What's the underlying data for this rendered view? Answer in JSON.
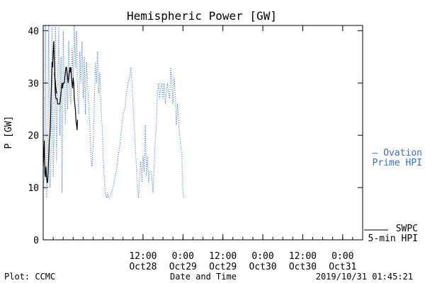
{
  "chart_data": {
    "type": "line",
    "title": "Hemispheric Power [GW]",
    "ylabel": "P [GW]",
    "xlabel": "Date and Time",
    "ylim": [
      0,
      41
    ],
    "xlim": [
      "2019-10-27 06:00",
      "2019-10-31 06:00"
    ],
    "yticks": [
      0,
      10,
      20,
      30,
      40
    ],
    "xticks": [
      {
        "time": "2019-10-28 12:00",
        "label1": "12:00",
        "label2": "Oct28"
      },
      {
        "time": "2019-10-29 00:00",
        "label1": "0:00",
        "label2": "Oct29"
      },
      {
        "time": "2019-10-29 12:00",
        "label1": "12:00",
        "label2": "Oct29"
      },
      {
        "time": "2019-10-30 00:00",
        "label1": "0:00",
        "label2": "Oct30"
      },
      {
        "time": "2019-10-30 12:00",
        "label1": "12:00",
        "label2": "Oct30"
      },
      {
        "time": "2019-10-31 00:00",
        "label1": "0:00",
        "label2": "Oct31"
      }
    ],
    "grid": false,
    "legend_position": "right",
    "series": [
      {
        "name": "Ovation Prime HPI",
        "legend_lines": [
          "— Ovation",
          "Prime HPI"
        ],
        "style": "dotted",
        "color": "#3a6fc4",
        "points": [
          [
            "2019-10-27 06:00",
            9
          ],
          [
            "2019-10-27 06:20",
            12
          ],
          [
            "2019-10-27 06:40",
            41
          ],
          [
            "2019-10-27 07:00",
            8
          ],
          [
            "2019-10-27 07:20",
            14
          ],
          [
            "2019-10-27 07:40",
            41
          ],
          [
            "2019-10-27 08:00",
            10
          ],
          [
            "2019-10-27 08:20",
            16
          ],
          [
            "2019-10-27 08:40",
            41
          ],
          [
            "2019-10-27 09:00",
            12
          ],
          [
            "2019-10-27 09:20",
            22
          ],
          [
            "2019-10-27 09:40",
            41
          ],
          [
            "2019-10-27 10:00",
            15
          ],
          [
            "2019-10-27 10:20",
            30
          ],
          [
            "2019-10-27 10:40",
            41
          ],
          [
            "2019-10-27 11:00",
            20
          ],
          [
            "2019-10-27 11:20",
            35
          ],
          [
            "2019-10-27 11:40",
            9
          ],
          [
            "2019-10-27 12:00",
            40
          ],
          [
            "2019-10-27 12:20",
            30
          ],
          [
            "2019-10-27 12:40",
            22
          ],
          [
            "2019-10-27 13:00",
            33
          ],
          [
            "2019-10-27 13:20",
            25
          ],
          [
            "2019-10-27 13:40",
            38
          ],
          [
            "2019-10-27 14:00",
            28
          ],
          [
            "2019-10-27 14:20",
            26
          ],
          [
            "2019-10-27 14:40",
            37
          ],
          [
            "2019-10-27 15:00",
            30
          ],
          [
            "2019-10-27 15:20",
            41
          ],
          [
            "2019-10-27 15:40",
            33
          ],
          [
            "2019-10-27 16:00",
            40
          ],
          [
            "2019-10-27 16:20",
            28
          ],
          [
            "2019-10-27 16:40",
            24
          ],
          [
            "2019-10-27 17:00",
            36
          ],
          [
            "2019-10-27 17:20",
            30
          ],
          [
            "2019-10-27 17:40",
            38
          ],
          [
            "2019-10-27 18:00",
            27
          ],
          [
            "2019-10-27 18:20",
            35
          ],
          [
            "2019-10-27 18:40",
            24
          ],
          [
            "2019-10-27 19:00",
            34
          ],
          [
            "2019-10-27 19:20",
            30
          ],
          [
            "2019-10-27 19:40",
            26
          ],
          [
            "2019-10-27 20:00",
            22
          ],
          [
            "2019-10-27 20:20",
            16
          ],
          [
            "2019-10-27 20:40",
            14
          ],
          [
            "2019-10-27 21:00",
            18
          ],
          [
            "2019-10-27 21:20",
            25
          ],
          [
            "2019-10-27 21:40",
            34
          ],
          [
            "2019-10-27 22:00",
            30
          ],
          [
            "2019-10-27 22:20",
            36
          ],
          [
            "2019-10-27 22:40",
            28
          ],
          [
            "2019-10-27 23:00",
            32
          ],
          [
            "2019-10-27 23:20",
            26
          ],
          [
            "2019-10-27 23:40",
            22
          ],
          [
            "2019-10-28 00:00",
            16
          ],
          [
            "2019-10-28 00:20",
            12
          ],
          [
            "2019-10-28 00:40",
            9
          ],
          [
            "2019-10-28 01:00",
            8
          ],
          [
            "2019-10-28 01:20",
            9
          ],
          [
            "2019-10-28 01:40",
            8
          ],
          [
            "2019-10-28 02:00",
            8
          ],
          [
            "2019-10-28 02:30",
            9
          ],
          [
            "2019-10-28 03:00",
            10
          ],
          [
            "2019-10-28 03:30",
            12
          ],
          [
            "2019-10-28 04:00",
            13
          ],
          [
            "2019-10-28 04:30",
            16
          ],
          [
            "2019-10-28 05:00",
            18
          ],
          [
            "2019-10-28 05:30",
            21
          ],
          [
            "2019-10-28 06:00",
            24
          ],
          [
            "2019-10-28 06:30",
            25
          ],
          [
            "2019-10-28 07:00",
            28
          ],
          [
            "2019-10-28 07:30",
            30
          ],
          [
            "2019-10-28 08:00",
            31
          ],
          [
            "2019-10-28 08:20",
            33
          ],
          [
            "2019-10-28 08:40",
            30
          ],
          [
            "2019-10-28 09:00",
            26
          ],
          [
            "2019-10-28 09:20",
            22
          ],
          [
            "2019-10-28 09:40",
            18
          ],
          [
            "2019-10-28 10:00",
            14
          ],
          [
            "2019-10-28 10:20",
            10
          ],
          [
            "2019-10-28 10:40",
            8
          ],
          [
            "2019-10-28 11:00",
            12
          ],
          [
            "2019-10-28 11:20",
            15
          ],
          [
            "2019-10-28 11:40",
            11
          ],
          [
            "2019-10-28 12:00",
            16
          ],
          [
            "2019-10-28 12:20",
            13
          ],
          [
            "2019-10-28 12:40",
            22
          ],
          [
            "2019-10-28 13:00",
            12
          ],
          [
            "2019-10-28 13:20",
            16
          ],
          [
            "2019-10-28 13:40",
            11
          ],
          [
            "2019-10-28 14:00",
            13
          ],
          [
            "2019-10-28 14:30",
            13
          ],
          [
            "2019-10-28 15:00",
            9
          ],
          [
            "2019-10-28 15:40",
            19
          ],
          [
            "2019-10-28 16:00",
            22
          ],
          [
            "2019-10-28 16:20",
            28
          ],
          [
            "2019-10-28 16:40",
            30
          ],
          [
            "2019-10-28 17:00",
            27
          ],
          [
            "2019-10-28 17:20",
            29
          ],
          [
            "2019-10-28 17:40",
            30
          ],
          [
            "2019-10-28 18:00",
            27
          ],
          [
            "2019-10-28 18:20",
            30
          ],
          [
            "2019-10-28 18:40",
            26
          ],
          [
            "2019-10-28 19:00",
            28
          ],
          [
            "2019-10-28 19:20",
            30
          ],
          [
            "2019-10-28 19:40",
            28
          ],
          [
            "2019-10-28 20:00",
            27
          ],
          [
            "2019-10-28 20:20",
            33
          ],
          [
            "2019-10-28 20:40",
            30
          ],
          [
            "2019-10-28 21:00",
            26
          ],
          [
            "2019-10-28 21:20",
            31
          ],
          [
            "2019-10-28 21:40",
            28
          ],
          [
            "2019-10-28 22:00",
            22
          ],
          [
            "2019-10-28 22:20",
            26
          ],
          [
            "2019-10-28 22:40",
            23
          ],
          [
            "2019-10-28 23:00",
            20
          ],
          [
            "2019-10-28 23:20",
            18
          ],
          [
            "2019-10-28 23:40",
            16
          ],
          [
            "2019-10-29 00:00",
            9
          ],
          [
            "2019-10-29 00:20",
            8
          ]
        ]
      },
      {
        "name": "SWPC 5-min HPI",
        "legend_lines": [
          "SWPC",
          "5-min HPI"
        ],
        "style": "solid",
        "color": "#000000",
        "points": [
          [
            "2019-10-27 06:00",
            14
          ],
          [
            "2019-10-27 06:10",
            16
          ],
          [
            "2019-10-27 06:20",
            19
          ],
          [
            "2019-10-27 06:30",
            13
          ],
          [
            "2019-10-27 06:40",
            12
          ],
          [
            "2019-10-27 06:50",
            14
          ],
          [
            "2019-10-27 07:00",
            12
          ],
          [
            "2019-10-27 07:10",
            11
          ],
          [
            "2019-10-27 07:20",
            11
          ],
          [
            "2019-10-27 07:30",
            13
          ],
          [
            "2019-10-27 07:40",
            16
          ],
          [
            "2019-10-27 07:50",
            19
          ],
          [
            "2019-10-27 08:00",
            20
          ],
          [
            "2019-10-27 08:10",
            22
          ],
          [
            "2019-10-27 08:20",
            27
          ],
          [
            "2019-10-27 08:30",
            30
          ],
          [
            "2019-10-27 08:40",
            34
          ],
          [
            "2019-10-27 08:50",
            33
          ],
          [
            "2019-10-27 09:00",
            36
          ],
          [
            "2019-10-27 09:10",
            38
          ],
          [
            "2019-10-27 09:20",
            34
          ],
          [
            "2019-10-27 09:30",
            31
          ],
          [
            "2019-10-27 09:40",
            28
          ],
          [
            "2019-10-27 09:50",
            27
          ],
          [
            "2019-10-27 10:10",
            27
          ],
          [
            "2019-10-27 10:20",
            26
          ],
          [
            "2019-10-27 11:00",
            26
          ],
          [
            "2019-10-27 11:10",
            27
          ],
          [
            "2019-10-27 11:20",
            28
          ],
          [
            "2019-10-27 11:30",
            29
          ],
          [
            "2019-10-27 11:40",
            30
          ],
          [
            "2019-10-27 11:50",
            29
          ],
          [
            "2019-10-27 12:00",
            30
          ],
          [
            "2019-10-27 12:20",
            30
          ],
          [
            "2019-10-27 12:30",
            31
          ],
          [
            "2019-10-27 12:40",
            32
          ],
          [
            "2019-10-27 12:50",
            33
          ],
          [
            "2019-10-27 13:00",
            33
          ],
          [
            "2019-10-27 13:10",
            32
          ],
          [
            "2019-10-27 13:20",
            31
          ],
          [
            "2019-10-27 13:30",
            30
          ],
          [
            "2019-10-27 13:40",
            31
          ],
          [
            "2019-10-27 13:50",
            32
          ],
          [
            "2019-10-27 14:00",
            33
          ],
          [
            "2019-10-27 14:10",
            32
          ],
          [
            "2019-10-27 14:20",
            33
          ],
          [
            "2019-10-27 14:30",
            31
          ],
          [
            "2019-10-27 14:40",
            30
          ],
          [
            "2019-10-27 14:50",
            29
          ],
          [
            "2019-10-27 15:00",
            31
          ],
          [
            "2019-10-27 15:10",
            30
          ],
          [
            "2019-10-27 15:20",
            27
          ],
          [
            "2019-10-27 15:30",
            26
          ],
          [
            "2019-10-27 15:40",
            25
          ],
          [
            "2019-10-27 15:50",
            23
          ],
          [
            "2019-10-27 16:00",
            22
          ],
          [
            "2019-10-27 16:10",
            21
          ],
          [
            "2019-10-27 16:20",
            23
          ]
        ],
        "extra_segment": [
          [
            "2019-10-27 09:20",
            32
          ],
          [
            "2019-10-27 10:00",
            28
          ]
        ]
      }
    ]
  },
  "footer": {
    "plot_credit": "Plot: CCMC",
    "timestamp": "2019/10/31 01:45:21"
  }
}
